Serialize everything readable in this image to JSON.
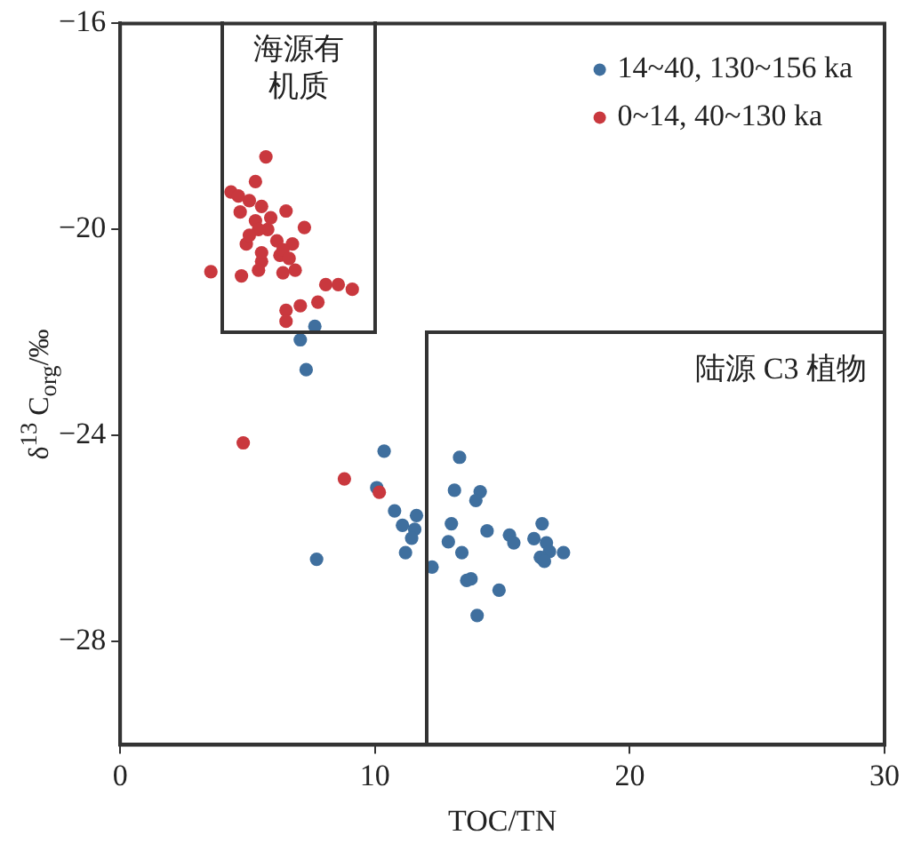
{
  "chart_data": {
    "type": "scatter",
    "xlabel": "TOC/TN",
    "ylabel": "δ$^{13}$ C$_{org}$/‰",
    "xlim": [
      0,
      30
    ],
    "xticks": [
      0,
      10,
      20,
      30
    ],
    "ylim": [
      -30,
      -16
    ],
    "yticks": [
      -16,
      -20,
      -24,
      -28
    ],
    "grid": false,
    "legend": "top right",
    "marker": "circle",
    "annotations": [
      "海源有机质",
      "陆源 C3 植物"
    ],
    "series": [
      {
        "name": "14~40, 130~156 ka",
        "color": "#3f6f9e",
        "x": [
          7.64,
          7.07,
          7.3,
          7.71,
          10.36,
          13.32,
          10.07,
          13.12,
          14.13,
          13.96,
          10.77,
          11.63,
          11.08,
          11.56,
          11.44,
          11.2,
          13.0,
          12.88,
          13.41,
          14.4,
          15.28,
          15.45,
          16.56,
          16.24,
          16.73,
          16.85,
          17.4,
          16.49,
          16.65,
          12.24,
          13.6,
          13.77,
          14.87,
          14.01
        ],
        "values": [
          -21.88,
          -22.14,
          -22.72,
          -26.4,
          -24.3,
          -24.42,
          -25.01,
          -25.06,
          -25.09,
          -25.26,
          -25.46,
          -25.55,
          -25.74,
          -25.82,
          -25.99,
          -26.27,
          -25.71,
          -26.06,
          -26.27,
          -25.85,
          -25.93,
          -26.08,
          -25.71,
          -26.0,
          -26.08,
          -26.25,
          -26.27,
          -26.36,
          -26.44,
          -26.55,
          -26.81,
          -26.78,
          -27.0,
          -27.49
        ]
      },
      {
        "name": "0~14, 40~130 ka",
        "color": "#c9383e",
        "x": [
          5.72,
          4.35,
          5.31,
          5.55,
          6.51,
          7.23,
          4.71,
          5.31,
          5.79,
          4.95,
          6.15,
          6.76,
          5.55,
          6.27,
          3.56,
          4.76,
          5.43,
          6.39,
          6.87,
          8.07,
          8.56,
          9.11,
          6.51,
          7.07,
          7.76,
          6.51,
          5.07,
          4.64,
          5.43,
          5.91,
          5.07,
          6.39,
          6.63,
          5.55,
          4.83,
          8.8,
          10.17
        ],
        "values": [
          -18.59,
          -19.27,
          -19.07,
          -19.55,
          -19.64,
          -19.96,
          -19.66,
          -19.83,
          -20.0,
          -20.28,
          -20.22,
          -20.28,
          -20.62,
          -20.5,
          -20.82,
          -20.9,
          -20.79,
          -20.84,
          -20.79,
          -21.07,
          -21.07,
          -21.16,
          -21.57,
          -21.48,
          -21.41,
          -21.78,
          -19.44,
          -19.35,
          -20.0,
          -19.77,
          -20.11,
          -20.39,
          -20.56,
          -20.45,
          -24.14,
          -24.84,
          -25.1
        ]
      }
    ]
  }
}
